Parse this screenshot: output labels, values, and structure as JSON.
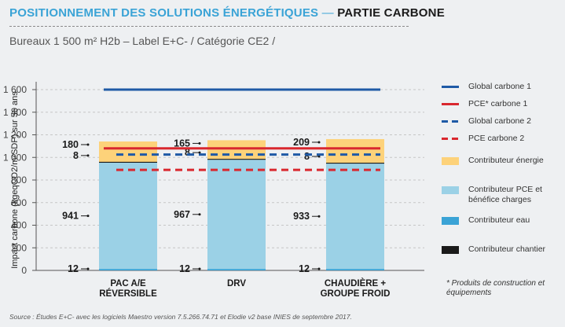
{
  "header": {
    "title_part1": "POSITIONNEMENT DES SOLUTIONS ÉNERGÉTIQUES",
    "title_sep": "—",
    "title_part2": "PARTIE CARBONE",
    "subtitle": "Bureaux 1 500 m² H2b – Label E+C- / Catégorie CE2 /"
  },
  "footnote": "* Produits de construction et équipements",
  "source": "Source : Études E+C- avec les logiciels Maestro version 7.5.266.74.71 et Elodie v2 base INIES de septembre 2017.",
  "colors": {
    "energie": "#fdd27a",
    "pce": "#9bd1e6",
    "eau": "#3aa3d6",
    "chantier": "#1a1a1a",
    "global_carbone": "#1f5aa6",
    "pce_carbone": "#d9282f",
    "axis": "#555555",
    "grid": "#c6c6c6"
  },
  "chart_data": {
    "type": "bar",
    "stacked": true,
    "categories": [
      "PAC A/E\nRÉVERSIBLE",
      "DRV",
      "CHAUDIÈRE +\nGROUPE FROID"
    ],
    "ylabel": "Impact carbone (kgeqCO2/m²SDP) sur 50 ans",
    "ylim": [
      0,
      1600
    ],
    "yticks": [
      "0",
      "200",
      "400",
      "600",
      "800",
      "1 000",
      "1 200",
      "1 400",
      "1 600"
    ],
    "series": [
      {
        "name": "Contributeur eau",
        "key": "eau",
        "values": [
          12,
          12,
          12
        ]
      },
      {
        "name": "Contributeur PCE et bénéfice charges",
        "key": "pce",
        "values": [
          941,
          967,
          933
        ]
      },
      {
        "name": "Contributeur chantier",
        "key": "chantier",
        "values": [
          8,
          8,
          8
        ]
      },
      {
        "name": "Contributeur énergie",
        "key": "energie",
        "values": [
          180,
          165,
          209
        ]
      }
    ],
    "value_labels": [
      {
        "eau": "12",
        "pce": "941",
        "chantier": "8",
        "energie": "180"
      },
      {
        "eau": "12",
        "pce": "967",
        "chantier": "8",
        "energie": "165"
      },
      {
        "eau": "12",
        "pce": "933",
        "chantier": "8",
        "energie": "209"
      }
    ],
    "reference_lines": [
      {
        "name": "Global carbone 1",
        "value": 1600,
        "style": "solid",
        "color_key": "global_carbone"
      },
      {
        "name": "PCE* carbone 1",
        "value": 1080,
        "style": "solid",
        "color_key": "pce_carbone"
      },
      {
        "name": "Global carbone 2",
        "value": 1025,
        "style": "dashed",
        "color_key": "global_carbone"
      },
      {
        "name": "PCE carbone 2",
        "value": 890,
        "style": "dashed",
        "color_key": "pce_carbone"
      }
    ],
    "legend": [
      {
        "label": "Global carbone 1",
        "kind": "line",
        "color_key": "global_carbone"
      },
      {
        "label": "PCE* carbone 1",
        "kind": "line",
        "color_key": "pce_carbone"
      },
      {
        "label": "Global carbone 2",
        "kind": "dash",
        "color_key": "global_carbone"
      },
      {
        "label": "PCE carbone 2",
        "kind": "dash",
        "color_key": "pce_carbone"
      },
      {
        "label": "Contributeur énergie",
        "kind": "box",
        "color_key": "energie"
      },
      {
        "label": "Contributeur PCE et bénéfice charges",
        "kind": "box",
        "color_key": "pce"
      },
      {
        "label": "Contributeur eau",
        "kind": "box",
        "color_key": "eau"
      },
      {
        "label": "Contributeur chantier",
        "kind": "box",
        "color_key": "chantier"
      }
    ],
    "grid": true,
    "legend_position": "right"
  }
}
